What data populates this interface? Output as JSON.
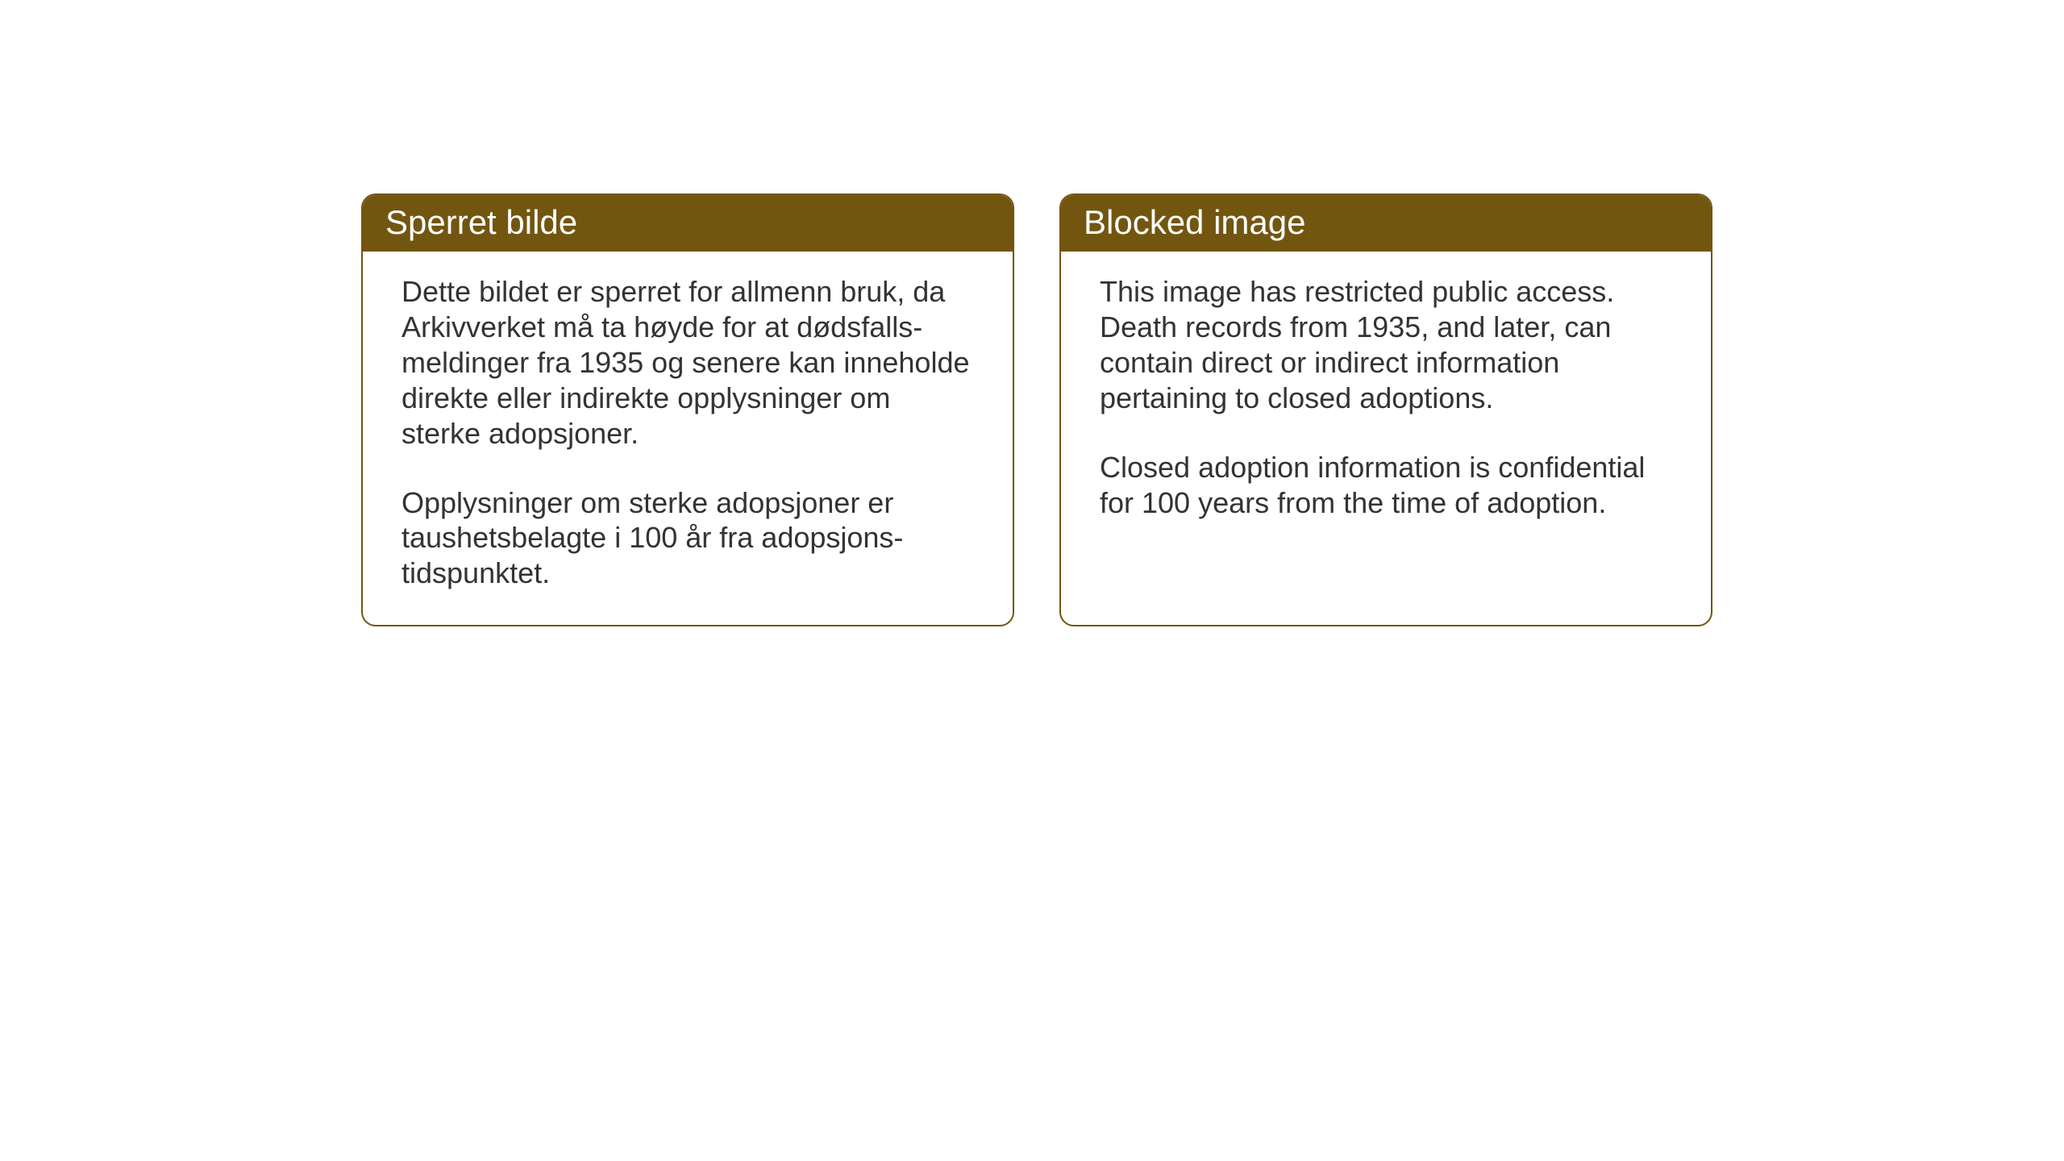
{
  "layout": {
    "background_color": "#ffffff",
    "box_border_color": "#725610",
    "header_background_color": "#725610",
    "header_text_color": "#ffffff",
    "body_text_color": "#333333",
    "border_radius": 18,
    "header_fontsize": 42,
    "body_fontsize": 36
  },
  "boxes": [
    {
      "title": "Sperret bilde",
      "paragraph1": "Dette bildet er sperret for allmenn bruk, da Arkivverket må ta høyde for at dødsfalls-meldinger fra 1935 og senere kan inneholde direkte eller indirekte opplysninger om sterke adopsjoner.",
      "paragraph2": "Opplysninger om sterke adopsjoner er taushetsbelagte i 100 år fra adopsjons-tidspunktet."
    },
    {
      "title": "Blocked image",
      "paragraph1": "This image has restricted public access. Death records from 1935, and later, can contain direct or indirect information pertaining to closed adoptions.",
      "paragraph2": "Closed adoption information is confidential for 100 years from the time of adoption."
    }
  ]
}
